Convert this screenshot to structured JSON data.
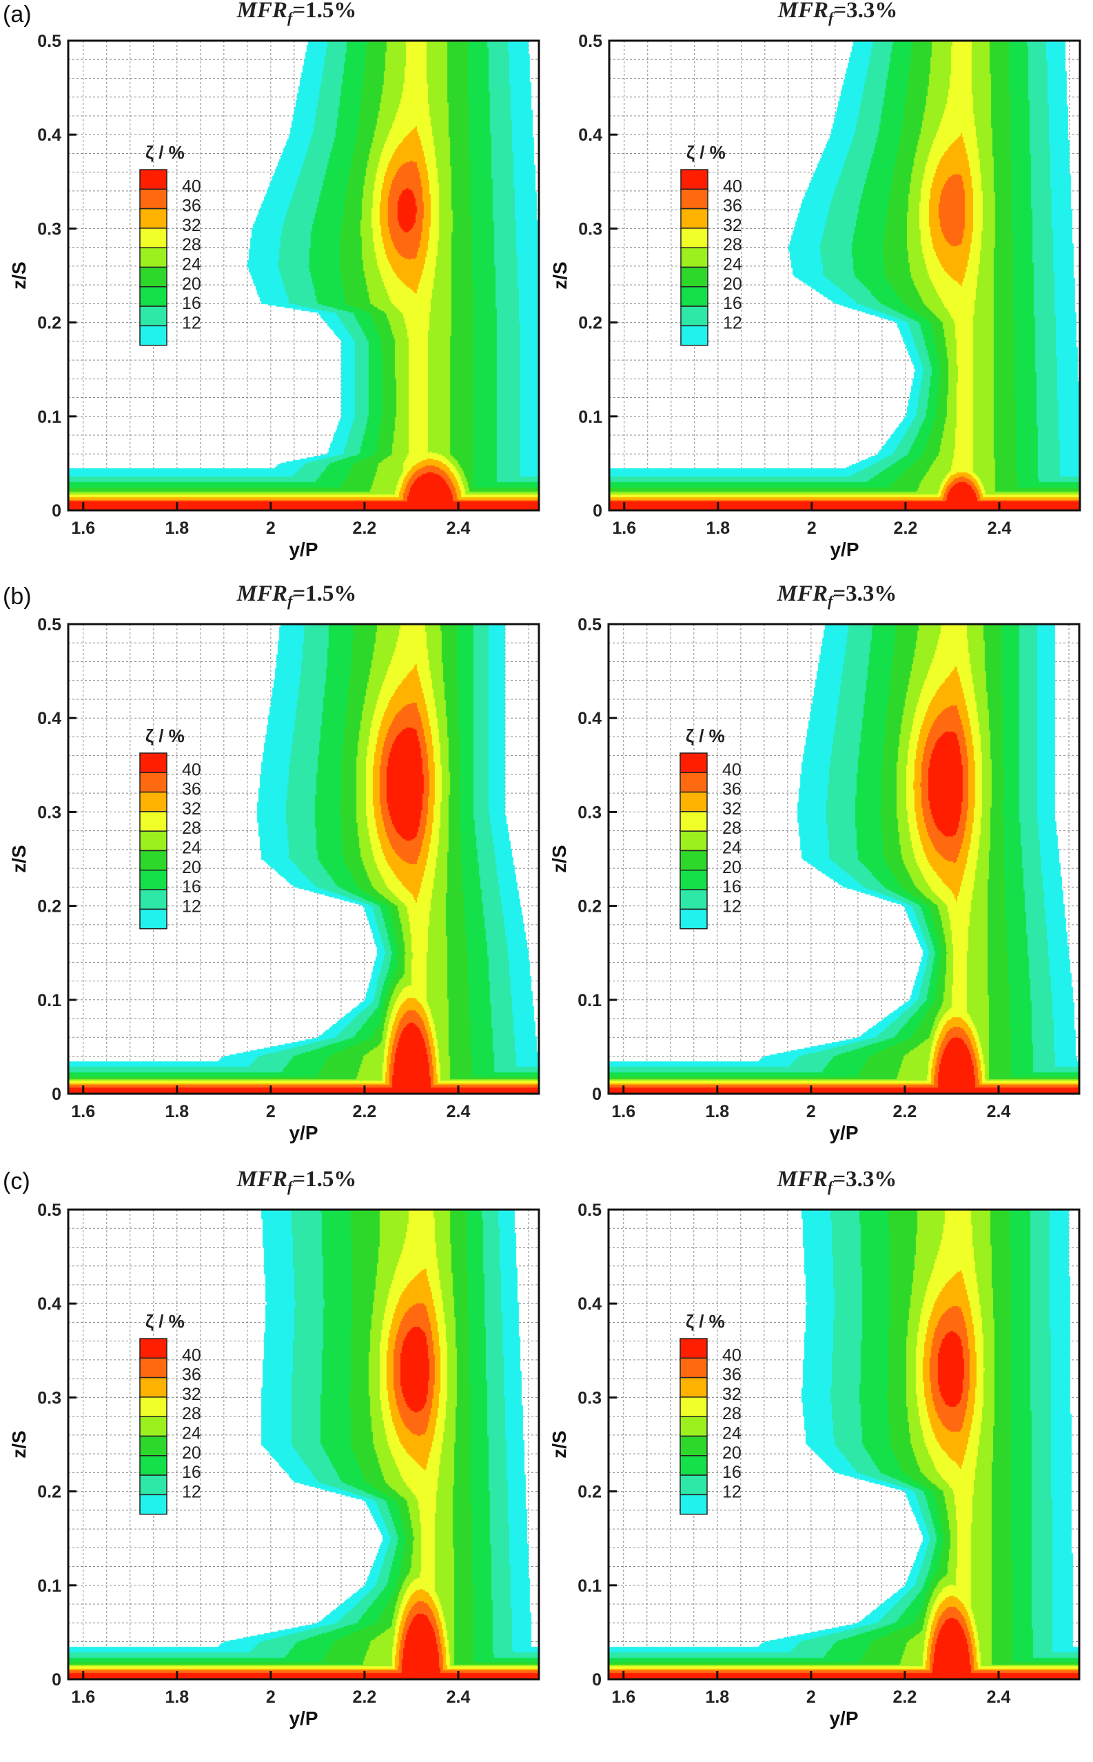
{
  "row_labels": [
    "(a)",
    "(b)",
    "(c)"
  ],
  "shared": {
    "xlabel": "y/P",
    "ylabel": "z/S",
    "xticks": [
      "1.6",
      "1.8",
      "2",
      "2.2",
      "2.4"
    ],
    "yticks": [
      "0",
      "0.1",
      "0.2",
      "0.3",
      "0.4",
      "0.5"
    ],
    "legend_title": "ζ / %",
    "legend_labels": [
      "40",
      "36",
      "32",
      "28",
      "24",
      "20",
      "16",
      "12"
    ],
    "legend_colors": [
      "#ff1e00",
      "#ff6a10",
      "#ffb300",
      "#f0ff28",
      "#9bf01e",
      "#2ed82a",
      "#14e04a",
      "#2ee8a8",
      "#22f2ee"
    ]
  },
  "chart_data": [
    {
      "type": "heatmap",
      "row": "(a)",
      "title": {
        "var": "MFR",
        "sub": "f",
        "value": "=1.5%"
      },
      "xlim": [
        1.57,
        2.57
      ],
      "ylim": [
        0,
        0.5
      ],
      "grid": true,
      "legend": "left-middle",
      "outer_left": [
        [
          0.5,
          2.08
        ],
        [
          0.45,
          2.06
        ],
        [
          0.4,
          2.04
        ],
        [
          0.35,
          2.0
        ],
        [
          0.3,
          1.96
        ],
        [
          0.26,
          1.95
        ],
        [
          0.22,
          1.98
        ],
        [
          0.21,
          2.1
        ],
        [
          0.18,
          2.15
        ],
        [
          0.1,
          2.15
        ],
        [
          0.06,
          2.12
        ],
        [
          0.05,
          2.02
        ],
        [
          0,
          1.9
        ]
      ],
      "outer_right": [
        [
          0.5,
          2.55
        ],
        [
          0.2,
          2.58
        ],
        [
          0,
          2.58
        ]
      ],
      "core": {
        "y": 2.28,
        "z": 0.32,
        "peak": 41,
        "sy": 0.06,
        "sz": 0.07
      },
      "wall_hotspot": {
        "y": 2.34,
        "top": 0.04,
        "hw": 0.1
      },
      "wall_top": 0.045
    },
    {
      "type": "heatmap",
      "row": "(a)",
      "title": {
        "var": "MFR",
        "sub": "f",
        "value": "=3.3%"
      },
      "xlim": [
        1.57,
        2.57
      ],
      "ylim": [
        0,
        0.5
      ],
      "grid": true,
      "legend": "left-middle",
      "outer_left": [
        [
          0.5,
          2.09
        ],
        [
          0.4,
          2.04
        ],
        [
          0.33,
          1.98
        ],
        [
          0.28,
          1.95
        ],
        [
          0.25,
          1.96
        ],
        [
          0.22,
          2.05
        ],
        [
          0.2,
          2.18
        ],
        [
          0.15,
          2.22
        ],
        [
          0.1,
          2.2
        ],
        [
          0.06,
          2.14
        ],
        [
          0.03,
          2.0
        ],
        [
          0,
          1.9
        ]
      ],
      "outer_right": [
        [
          0.5,
          2.54
        ],
        [
          0,
          2.58
        ]
      ],
      "core": {
        "y": 2.29,
        "z": 0.32,
        "peak": 38,
        "sy": 0.06,
        "sz": 0.07
      },
      "wall_hotspot": {
        "y": 2.32,
        "top": 0.03,
        "hw": 0.07
      },
      "wall_top": 0.045
    },
    {
      "type": "heatmap",
      "row": "(b)",
      "title": {
        "var": "MFR",
        "sub": "f",
        "value": "=1.5%"
      },
      "xlim": [
        1.57,
        2.57
      ],
      "ylim": [
        0,
        0.5
      ],
      "grid": true,
      "legend": "left-middle",
      "outer_left": [
        [
          0.5,
          2.02
        ],
        [
          0.45,
          2.01
        ],
        [
          0.35,
          1.98
        ],
        [
          0.3,
          1.97
        ],
        [
          0.25,
          1.98
        ],
        [
          0.22,
          2.05
        ],
        [
          0.2,
          2.2
        ],
        [
          0.15,
          2.23
        ],
        [
          0.1,
          2.2
        ],
        [
          0.06,
          2.1
        ],
        [
          0.04,
          1.9
        ],
        [
          0,
          1.8
        ]
      ],
      "outer_right": [
        [
          0.5,
          2.5
        ],
        [
          0.3,
          2.5
        ],
        [
          0.15,
          2.55
        ],
        [
          0.04,
          2.57
        ],
        [
          0,
          2.57
        ]
      ],
      "core": {
        "y": 2.28,
        "z": 0.33,
        "peak": 46,
        "sy": 0.07,
        "sz": 0.09
      },
      "wall_hotspot": {
        "y": 2.3,
        "top": 0.075,
        "hw": 0.08
      },
      "wall_top": 0.035
    },
    {
      "type": "heatmap",
      "row": "(b)",
      "title": {
        "var": "MFR",
        "sub": "f",
        "value": "=3.3%"
      },
      "xlim": [
        1.57,
        2.57
      ],
      "ylim": [
        0,
        0.5
      ],
      "grid": true,
      "legend": "left-middle",
      "outer_left": [
        [
          0.5,
          2.03
        ],
        [
          0.35,
          1.98
        ],
        [
          0.3,
          1.97
        ],
        [
          0.25,
          1.98
        ],
        [
          0.22,
          2.07
        ],
        [
          0.2,
          2.2
        ],
        [
          0.15,
          2.24
        ],
        [
          0.1,
          2.21
        ],
        [
          0.06,
          2.1
        ],
        [
          0.04,
          1.9
        ],
        [
          0,
          1.8
        ]
      ],
      "outer_right": [
        [
          0.5,
          2.52
        ],
        [
          0.3,
          2.52
        ],
        [
          0.1,
          2.56
        ],
        [
          0,
          2.57
        ]
      ],
      "core": {
        "y": 2.28,
        "z": 0.33,
        "peak": 45,
        "sy": 0.07,
        "sz": 0.09
      },
      "wall_hotspot": {
        "y": 2.31,
        "top": 0.06,
        "hw": 0.08
      },
      "wall_top": 0.035
    },
    {
      "type": "heatmap",
      "row": "(c)",
      "title": {
        "var": "MFR",
        "sub": "f",
        "value": "=1.5%"
      },
      "xlim": [
        1.57,
        2.57
      ],
      "ylim": [
        0,
        0.5
      ],
      "grid": true,
      "legend": "left-middle",
      "outer_left": [
        [
          0.5,
          1.98
        ],
        [
          0.4,
          1.99
        ],
        [
          0.3,
          1.98
        ],
        [
          0.25,
          1.98
        ],
        [
          0.21,
          2.05
        ],
        [
          0.19,
          2.2
        ],
        [
          0.15,
          2.24
        ],
        [
          0.1,
          2.2
        ],
        [
          0.06,
          2.1
        ],
        [
          0.04,
          1.9
        ],
        [
          0,
          1.8
        ]
      ],
      "outer_right": [
        [
          0.5,
          2.52
        ],
        [
          0,
          2.56
        ]
      ],
      "core": {
        "y": 2.3,
        "z": 0.33,
        "peak": 44,
        "sy": 0.06,
        "sz": 0.08
      },
      "wall_hotspot": {
        "y": 2.32,
        "top": 0.07,
        "hw": 0.08
      },
      "wall_top": 0.035
    },
    {
      "type": "heatmap",
      "row": "(c)",
      "title": {
        "var": "MFR",
        "sub": "f",
        "value": "=3.3%"
      },
      "xlim": [
        1.57,
        2.57
      ],
      "ylim": [
        0,
        0.5
      ],
      "grid": true,
      "legend": "left-middle",
      "outer_left": [
        [
          0.5,
          1.98
        ],
        [
          0.4,
          1.99
        ],
        [
          0.3,
          1.98
        ],
        [
          0.25,
          1.99
        ],
        [
          0.22,
          2.05
        ],
        [
          0.2,
          2.2
        ],
        [
          0.15,
          2.24
        ],
        [
          0.1,
          2.2
        ],
        [
          0.06,
          2.1
        ],
        [
          0.04,
          1.9
        ],
        [
          0,
          1.8
        ]
      ],
      "outer_right": [
        [
          0.5,
          2.55
        ],
        [
          0,
          2.56
        ]
      ],
      "core": {
        "y": 2.29,
        "z": 0.33,
        "peak": 43,
        "sy": 0.06,
        "sz": 0.08
      },
      "wall_hotspot": {
        "y": 2.3,
        "top": 0.065,
        "hw": 0.08
      },
      "wall_top": 0.035
    }
  ]
}
